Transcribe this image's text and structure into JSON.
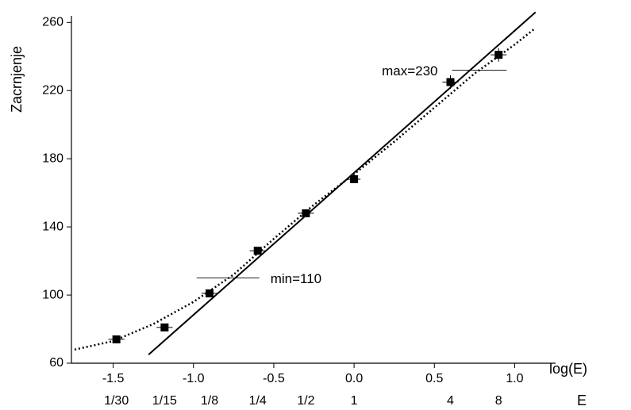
{
  "chart_data": {
    "type": "scatter",
    "color": "#000000",
    "x_label": "log(E)",
    "y_label": "Zacrnjenje",
    "xlim": [
      -1.76,
      1.24
    ],
    "ylim": [
      60,
      262
    ],
    "xticks": [
      {
        "value": -1.5,
        "label": "-1.5"
      },
      {
        "value": -1.0,
        "label": "-1.0"
      },
      -0.5,
      {
        "value": 0.0,
        "label": "0.0"
      },
      0.5,
      {
        "value": 1.0,
        "label": "1.0"
      }
    ],
    "yticks": [
      60,
      100,
      140,
      180,
      220,
      260
    ],
    "points": {
      "x": [
        -1.48,
        -1.18,
        -0.9,
        -0.6,
        -0.3,
        0.0,
        0.6,
        0.9
      ],
      "values": [
        74,
        81,
        101,
        126,
        148,
        168,
        225,
        241
      ],
      "x_errors": [
        0.05,
        0.05,
        0.05,
        0.05,
        0.05,
        0.04,
        0.05,
        0.05
      ],
      "errors": [
        2,
        2,
        2,
        2,
        2,
        2,
        4,
        4
      ]
    },
    "fit_line": {
      "x": [
        -1.28,
        1.13
      ],
      "values": [
        65,
        266
      ]
    },
    "curve": {
      "x": [
        -1.74,
        -1.5,
        -1.25,
        -1.0,
        -0.75,
        -0.5,
        -0.25,
        0.0,
        0.25,
        0.5,
        0.75,
        1.0,
        1.12
      ],
      "values": [
        68,
        73,
        83,
        96,
        112,
        133,
        153,
        171,
        190,
        210,
        230,
        247,
        256
      ]
    },
    "annotations": [
      {
        "text": "max=230",
        "x": [
          0.61,
          0.95
        ],
        "y": 232
      },
      {
        "text": "min=110",
        "x": [
          -0.98,
          -0.59
        ],
        "y": 110
      }
    ],
    "e_axis": {
      "label": "E",
      "x": [
        -1.48,
        -1.18,
        -0.9,
        -0.6,
        -0.3,
        0.0,
        0.6,
        0.9
      ],
      "labels": [
        "1/30",
        "1/15",
        "1/8",
        "1/4",
        "1/2",
        "1",
        "4",
        "8"
      ]
    }
  }
}
